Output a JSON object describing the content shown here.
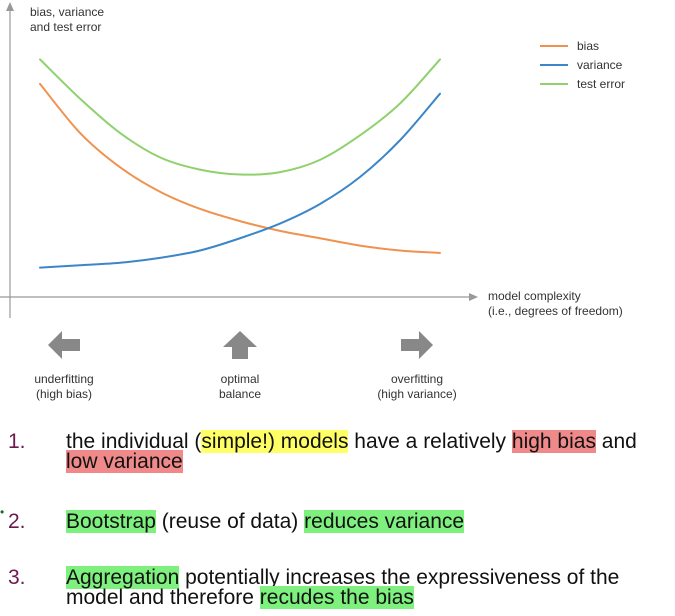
{
  "chart_data": {
    "type": "line",
    "ylabel": "bias, variance\nand test error",
    "xlabel": "model complexity\n(i.e., degrees of freedom)",
    "x": [
      0,
      0.1,
      0.2,
      0.3,
      0.4,
      0.5,
      0.6,
      0.7,
      0.8,
      0.9,
      1.0
    ],
    "series": [
      {
        "name": "bias",
        "color": "#f0924f",
        "values": [
          0.78,
          0.58,
          0.44,
          0.34,
          0.27,
          0.22,
          0.18,
          0.15,
          0.12,
          0.1,
          0.09
        ]
      },
      {
        "name": "variance",
        "color": "#3b86c8",
        "values": [
          0.03,
          0.04,
          0.05,
          0.07,
          0.1,
          0.15,
          0.21,
          0.29,
          0.4,
          0.55,
          0.74
        ]
      },
      {
        "name": "test error",
        "color": "#8fd16d",
        "values": [
          0.88,
          0.72,
          0.58,
          0.48,
          0.43,
          0.41,
          0.42,
          0.47,
          0.57,
          0.7,
          0.88
        ]
      }
    ],
    "ylim": [
      0,
      1
    ],
    "grid": false,
    "legend_position": "top-right"
  },
  "regions": [
    {
      "label_line1": "underfitting",
      "label_line2": "(high bias)",
      "direction": "left",
      "icon": "arrow-left-icon"
    },
    {
      "label_line1": "optimal",
      "label_line2": "balance",
      "direction": "up",
      "icon": "arrow-up-icon"
    },
    {
      "label_line1": "overfitting",
      "label_line2": "(high variance)",
      "direction": "right",
      "icon": "arrow-right-icon"
    }
  ],
  "notes": [
    {
      "number": "1.",
      "segments": [
        {
          "text": "the individual ("
        },
        {
          "text": "simple!) models",
          "highlight": "yellow"
        },
        {
          "text": " have a relatively "
        },
        {
          "text": "high bias",
          "highlight": "red"
        },
        {
          "text": " and "
        },
        {
          "text": "low variance",
          "highlight": "red"
        }
      ]
    },
    {
      "number": "2.",
      "segments": [
        {
          "text": "Bootstrap",
          "highlight": "green"
        },
        {
          "text": " (reuse of data) "
        },
        {
          "text": "reduces variance",
          "highlight": "green"
        }
      ]
    },
    {
      "number": "3.",
      "segments": [
        {
          "text": "Aggregation",
          "highlight": "green"
        },
        {
          "text": " potentially increases the expressiveness of the model and therefore "
        },
        {
          "text": "recudes the bias",
          "highlight": "green"
        }
      ]
    }
  ],
  "colors": {
    "axis": "#999999",
    "arrow_fill": "#888888"
  }
}
